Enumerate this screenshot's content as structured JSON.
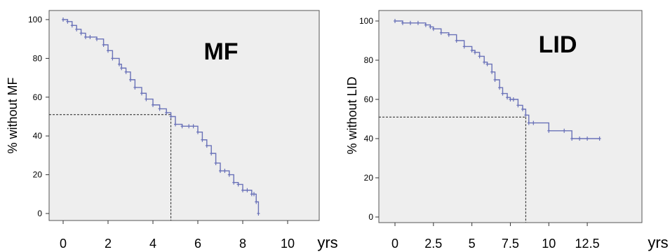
{
  "chart_data": [
    {
      "type": "line",
      "title": "MF",
      "xlabel": "yrs",
      "ylabel": "% without MF",
      "xlim": [
        0,
        10
      ],
      "ylim": [
        0,
        100
      ],
      "xticks": [
        "0",
        "2",
        "4",
        "6",
        "8",
        "10"
      ],
      "yticks": [
        "0",
        "20",
        "40",
        "60",
        "80",
        "100"
      ],
      "series_color": "#6a72b8",
      "grid": false,
      "background": "#eeeeee",
      "x": [
        0,
        0.2,
        0.4,
        0.6,
        0.8,
        1.0,
        1.2,
        1.5,
        1.8,
        2.0,
        2.2,
        2.5,
        2.6,
        2.8,
        3.0,
        3.2,
        3.5,
        3.7,
        4.0,
        4.3,
        4.6,
        4.8,
        5.0,
        5.3,
        5.6,
        5.8,
        6.0,
        6.2,
        6.4,
        6.6,
        6.8,
        7.0,
        7.2,
        7.4,
        7.6,
        7.8,
        8.0,
        8.2,
        8.4,
        8.5,
        8.6,
        8.7
      ],
      "values": [
        100,
        99,
        97,
        95,
        93,
        91,
        91,
        90,
        87,
        84,
        80,
        77,
        75,
        73,
        69,
        65,
        62,
        59,
        56,
        54,
        52,
        50,
        46,
        45,
        45,
        45,
        42,
        38,
        35,
        31,
        26,
        22,
        22,
        20,
        16,
        15,
        12,
        12,
        10,
        10,
        6,
        0
      ],
      "reference_lines": [
        {
          "orientation": "horizontal",
          "value": 51,
          "from": 0,
          "to": 4.8
        },
        {
          "orientation": "vertical",
          "value": 4.8,
          "from": 0,
          "to": 51
        }
      ]
    },
    {
      "type": "line",
      "title": "LID",
      "xlabel": "yrs",
      "ylabel": "% without LID",
      "xlim": [
        0,
        13.5
      ],
      "ylim": [
        0,
        100
      ],
      "xticks": [
        "0",
        "2.5",
        "5",
        "7.5",
        "10",
        "12.5"
      ],
      "yticks": [
        "0",
        "20",
        "40",
        "60",
        "80",
        "100"
      ],
      "series_color": "#6a72b8",
      "grid": false,
      "background": "#eeeeee",
      "x": [
        0,
        0.5,
        1.0,
        1.5,
        2.0,
        2.3,
        2.5,
        3.0,
        3.5,
        4.0,
        4.5,
        5.0,
        5.2,
        5.5,
        5.8,
        6.0,
        6.3,
        6.5,
        6.8,
        7.0,
        7.3,
        7.5,
        7.7,
        8.0,
        8.3,
        8.5,
        8.7,
        9.0,
        10.0,
        11.0,
        11.5,
        12.0,
        12.5,
        13.3
      ],
      "values": [
        100,
        99,
        99,
        99,
        98,
        97,
        96,
        94,
        93,
        90,
        87,
        85,
        84,
        82,
        79,
        78,
        74,
        70,
        66,
        63,
        61,
        60,
        60,
        57,
        55,
        52,
        48,
        48,
        44,
        44,
        40,
        40,
        40,
        40
      ],
      "reference_lines": [
        {
          "orientation": "horizontal",
          "value": 51,
          "from": 0,
          "to": 8.5
        },
        {
          "orientation": "vertical",
          "value": 8.5,
          "from": 0,
          "to": 51
        }
      ]
    }
  ]
}
